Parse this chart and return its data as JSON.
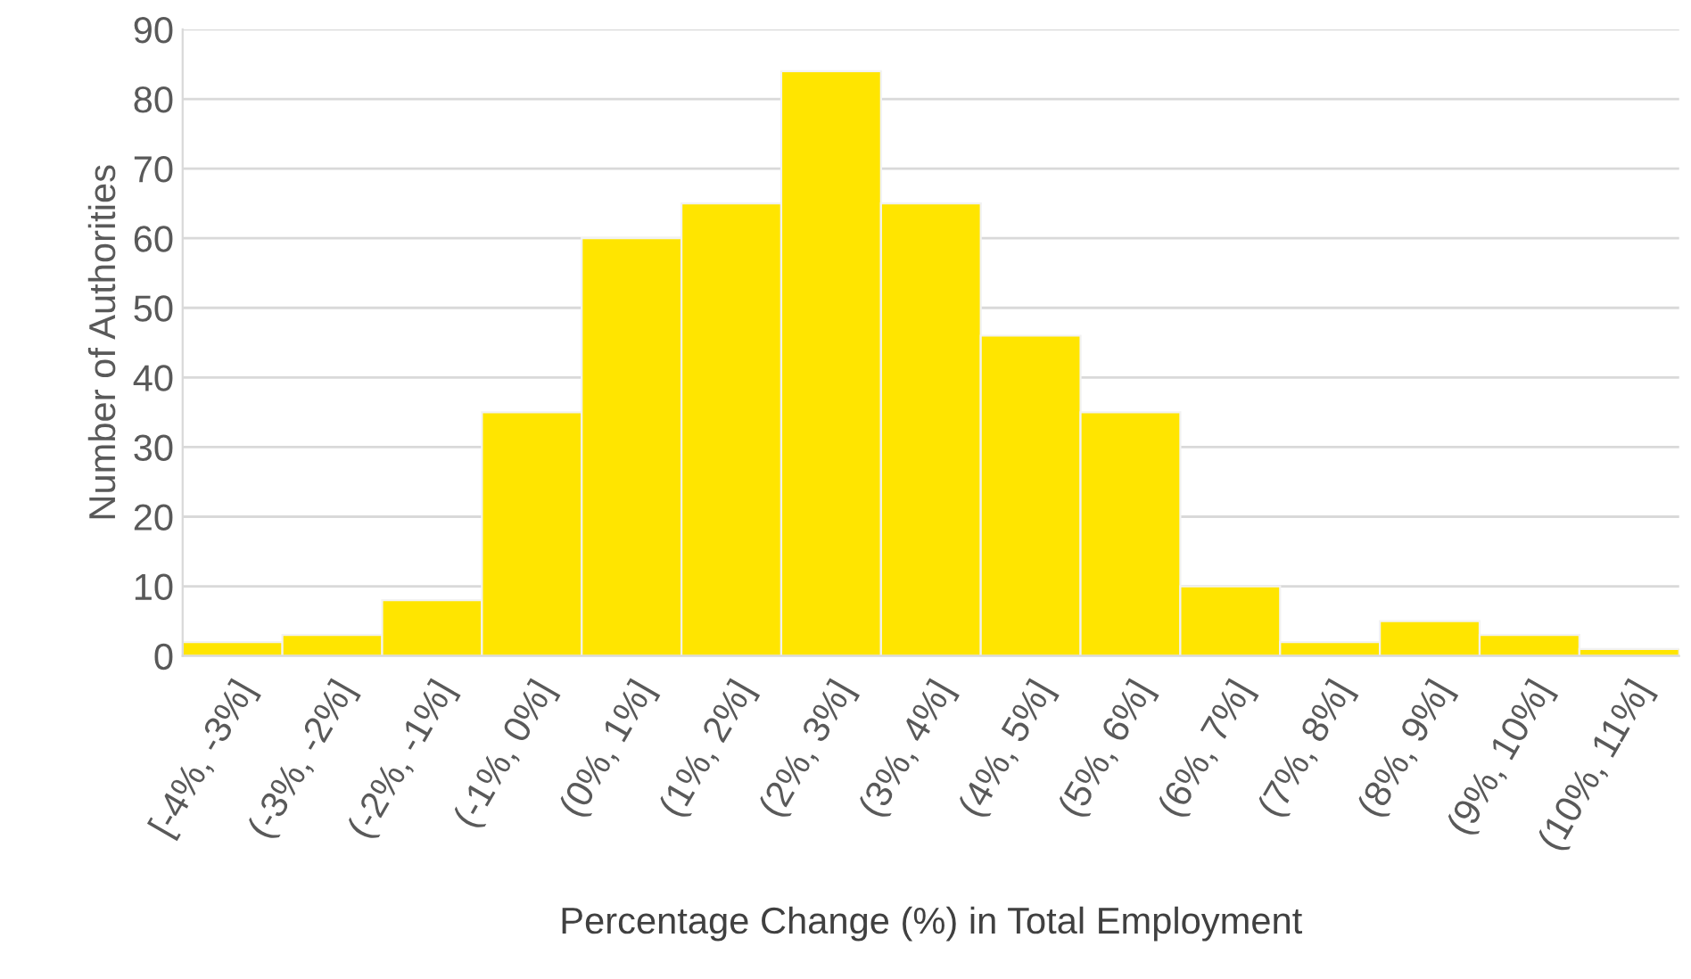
{
  "chart_data": {
    "type": "bar",
    "xlabel": "Percentage Change (%) in Total Employment",
    "ylabel": "Number of Authorities",
    "categories": [
      "[-4%, -3%]",
      "(-3%, -2%]",
      "(-2%, -1%]",
      "(-1%, 0%]",
      "(0%, 1%]",
      "(1%, 2%]",
      "(2%, 3%]",
      "(3%, 4%]",
      "(4%, 5%]",
      "(5%, 6%]",
      "(6%, 7%]",
      "(7%, 8%]",
      "(8%, 9%]",
      "(9%, 10%]",
      "(10%, 11%]"
    ],
    "values": [
      2,
      3,
      8,
      35,
      60,
      65,
      84,
      65,
      46,
      35,
      10,
      2,
      5,
      3,
      1
    ],
    "color": "#ffe500",
    "ylim": [
      0,
      90
    ],
    "yticks": [
      0,
      10,
      20,
      30,
      40,
      50,
      60,
      70,
      80,
      90
    ],
    "grid": "y",
    "legend": false
  }
}
